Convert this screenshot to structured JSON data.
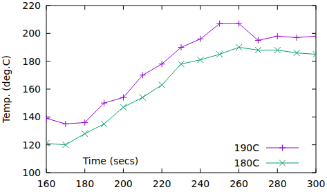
{
  "chart_data": {
    "type": "line",
    "x_label": "Time (secs)",
    "y_label": "Temp. (deg.C)",
    "x": [
      160,
      170,
      180,
      190,
      200,
      210,
      220,
      230,
      240,
      250,
      260,
      270,
      280,
      290,
      300
    ],
    "series": [
      {
        "name": "190C",
        "color": "#9400d3",
        "marker": "plus",
        "values": [
          139,
          135,
          136,
          150,
          154,
          170,
          178,
          190,
          196,
          207,
          207,
          195,
          198,
          197,
          198
        ]
      },
      {
        "name": "180C",
        "color": "#009e73",
        "marker": "cross",
        "values": [
          121,
          120,
          128,
          135,
          147,
          154,
          163,
          178,
          181,
          185,
          190,
          188,
          188,
          186,
          185
        ]
      }
    ],
    "xlim": [
      160,
      300
    ],
    "xticks": [
      160,
      180,
      200,
      220,
      240,
      260,
      280,
      300
    ],
    "ylim": [
      100,
      220
    ],
    "yticks": [
      100,
      120,
      140,
      160,
      180,
      200,
      220
    ],
    "legend": "lower right",
    "grid": false
  }
}
